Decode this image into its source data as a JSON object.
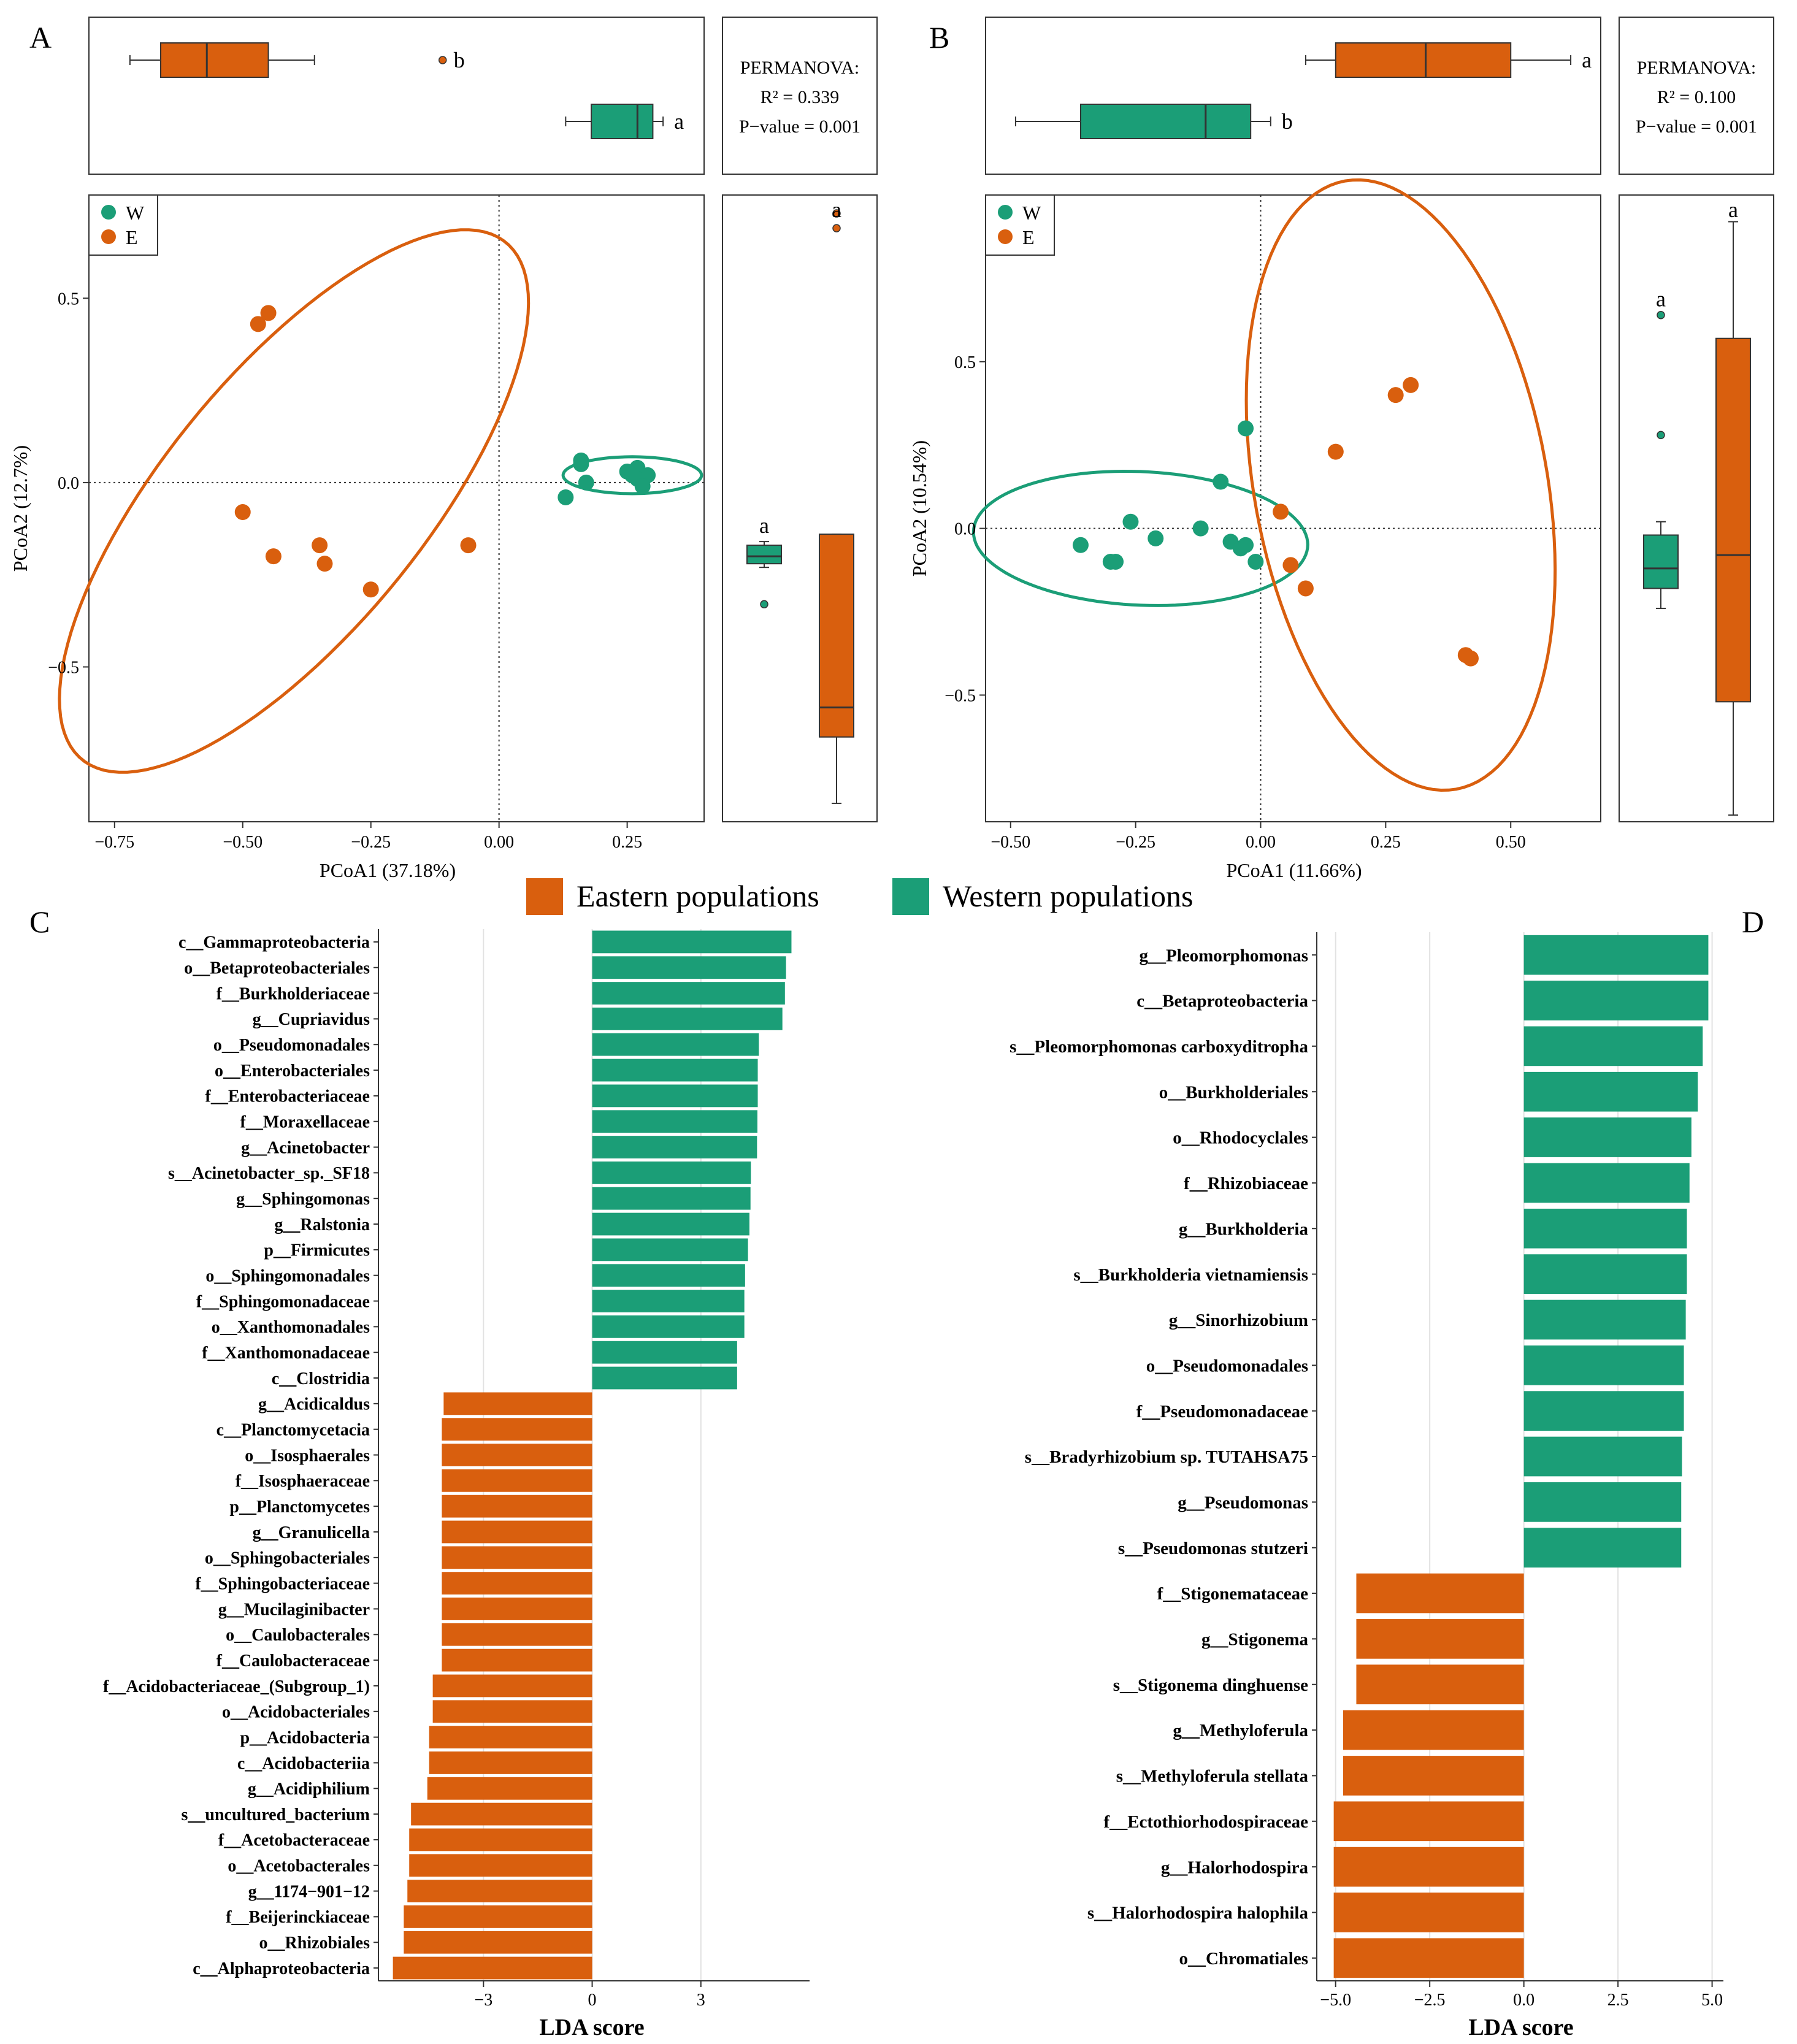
{
  "colors": {
    "east": "#d95f0e",
    "west": "#1b9e77",
    "axis": "#333333",
    "grid": "#e2e2e2"
  },
  "legend_main": {
    "east": "Eastern populations",
    "west": "Western populations"
  },
  "panel_labels": [
    "A",
    "B",
    "C",
    "D"
  ],
  "chart_data": [
    {
      "type": "scatter",
      "panel": "A",
      "xlabel": "PCoA1 (37.18%)",
      "ylabel": "PCoA2 (12.7%)",
      "xlim": [
        -0.8,
        0.4
      ],
      "ylim": [
        -0.92,
        0.78
      ],
      "xticks": [
        -0.75,
        -0.5,
        -0.25,
        0.0,
        0.25
      ],
      "xtick_labels": [
        "−0.75",
        "−0.50",
        "−0.25",
        "0.00",
        "0.25"
      ],
      "yticks": [
        0.5,
        0.0,
        -0.5
      ],
      "ytick_labels": [
        "0.5",
        "0.0",
        "−0.5"
      ],
      "legend": [
        {
          "name": "W",
          "group": "west"
        },
        {
          "name": "E",
          "group": "east"
        }
      ],
      "series": [
        {
          "name": "W",
          "group": "west",
          "points": [
            [
              0.16,
              0.05
            ],
            [
              0.16,
              0.06
            ],
            [
              0.17,
              0.0
            ],
            [
              0.13,
              -0.04
            ],
            [
              0.25,
              0.03
            ],
            [
              0.27,
              0.04
            ],
            [
              0.29,
              0.02
            ],
            [
              0.27,
              0.01
            ],
            [
              0.28,
              -0.01
            ],
            [
              0.26,
              0.02
            ]
          ]
        },
        {
          "name": "E",
          "group": "east",
          "points": [
            [
              -0.47,
              0.43
            ],
            [
              -0.45,
              0.46
            ],
            [
              -0.5,
              -0.08
            ],
            [
              -0.44,
              -0.2
            ],
            [
              -0.35,
              -0.17
            ],
            [
              -0.34,
              -0.22
            ],
            [
              -0.25,
              -0.29
            ],
            [
              -0.06,
              -0.17
            ]
          ]
        }
      ],
      "ellipses": [
        {
          "group": "west",
          "cx": 0.26,
          "cy": 0.02,
          "rx": 0.135,
          "ry": 0.05,
          "angle": 0
        },
        {
          "group": "east",
          "cx": -0.4,
          "cy": -0.05,
          "rx": 0.82,
          "ry": 0.28,
          "angle": 62
        }
      ],
      "permanova": {
        "title": "PERMANOVA:",
        "r2": "R² = 0.339",
        "p": "P−value = 0.001"
      },
      "box_top": [
        {
          "group": "east",
          "min": -0.72,
          "q1": -0.66,
          "median": -0.57,
          "q3": -0.45,
          "max": -0.36,
          "outliers": [
            -0.11
          ],
          "letter": "b"
        },
        {
          "group": "west",
          "min": 0.13,
          "q1": 0.18,
          "median": 0.27,
          "q3": 0.3,
          "max": 0.32,
          "outliers": [],
          "letter": "a"
        }
      ],
      "box_right": [
        {
          "group": "west",
          "min": -0.23,
          "q1": -0.22,
          "median": -0.2,
          "q3": -0.17,
          "max": -0.16,
          "outliers": [
            -0.33
          ],
          "letter": "a"
        },
        {
          "group": "east",
          "min": -0.87,
          "q1": -0.69,
          "median": -0.61,
          "q3": -0.14,
          "max": -0.14,
          "outliers": [
            0.73,
            0.69
          ],
          "letter": "a"
        }
      ]
    },
    {
      "type": "scatter",
      "panel": "B",
      "xlabel": "PCoA1 (11.66%)",
      "ylabel": "PCoA2 (10.54%)",
      "xlim": [
        -0.55,
        0.68
      ],
      "ylim": [
        -0.88,
        1.0
      ],
      "xticks": [
        -0.5,
        -0.25,
        0.0,
        0.25,
        0.5
      ],
      "xtick_labels": [
        "−0.50",
        "−0.25",
        "0.00",
        "0.25",
        "0.50"
      ],
      "yticks": [
        0.5,
        0.0,
        -0.5
      ],
      "ytick_labels": [
        "0.5",
        "0.0",
        "−0.5"
      ],
      "legend": [
        {
          "name": "W",
          "group": "west"
        },
        {
          "name": "E",
          "group": "east"
        }
      ],
      "series": [
        {
          "name": "W",
          "group": "west",
          "points": [
            [
              -0.36,
              -0.05
            ],
            [
              -0.3,
              -0.1
            ],
            [
              -0.29,
              -0.1
            ],
            [
              -0.26,
              0.02
            ],
            [
              -0.21,
              -0.03
            ],
            [
              -0.12,
              0.0
            ],
            [
              -0.08,
              0.14
            ],
            [
              -0.06,
              -0.04
            ],
            [
              -0.04,
              -0.06
            ],
            [
              -0.03,
              -0.05
            ],
            [
              -0.03,
              0.3
            ],
            [
              -0.01,
              -0.1
            ]
          ]
        },
        {
          "name": "E",
          "group": "east",
          "points": [
            [
              0.04,
              0.05
            ],
            [
              0.06,
              -0.11
            ],
            [
              0.09,
              -0.18
            ],
            [
              0.15,
              0.23
            ],
            [
              0.27,
              0.4
            ],
            [
              0.3,
              0.43
            ],
            [
              0.41,
              -0.38
            ],
            [
              0.42,
              -0.39
            ]
          ]
        }
      ],
      "ellipses": [
        {
          "group": "west",
          "cx": -0.24,
          "cy": -0.03,
          "rx": 0.335,
          "ry": 0.2,
          "angle": -5
        },
        {
          "group": "east",
          "cx": 0.28,
          "cy": 0.13,
          "rx": 0.92,
          "ry": 0.295,
          "angle": 96
        }
      ],
      "permanova": {
        "title": "PERMANOVA:",
        "r2": "R² = 0.100",
        "p": "P−value = 0.001"
      },
      "box_top": [
        {
          "group": "east",
          "min": 0.09,
          "q1": 0.15,
          "median": 0.33,
          "q3": 0.5,
          "max": 0.62,
          "outliers": [],
          "letter": "a"
        },
        {
          "group": "west",
          "min": -0.49,
          "q1": -0.36,
          "median": -0.11,
          "q3": -0.02,
          "max": 0.02,
          "outliers": [],
          "letter": "b"
        }
      ],
      "box_right": [
        {
          "group": "west",
          "min": -0.24,
          "q1": -0.18,
          "median": -0.12,
          "q3": -0.02,
          "max": 0.02,
          "outliers": [
            0.28,
            0.64
          ],
          "letter": "a"
        },
        {
          "group": "east",
          "min": -0.86,
          "q1": -0.52,
          "median": -0.08,
          "q3": 0.57,
          "max": 0.92,
          "outliers": [],
          "letter": "a"
        }
      ]
    },
    {
      "type": "bar",
      "orientation": "horizontal",
      "panel": "C",
      "xlabel": "LDA score",
      "xlim": [
        -5.9,
        6.0
      ],
      "xticks": [
        -3,
        0,
        3
      ],
      "xtick_labels": [
        "−3",
        "0",
        "3"
      ],
      "categories": [
        "c__Gammaproteobacteria",
        "o__Betaproteobacteriales",
        "f__Burkholderiaceae",
        "g__Cupriavidus",
        "o__Pseudomonadales",
        "o__Enterobacteriales",
        "f__Enterobacteriaceae",
        "f__Moraxellaceae",
        "g__Acinetobacter",
        "s__Acinetobacter_sp._SF18",
        "g__Sphingomonas",
        "g__Ralstonia",
        "p__Firmicutes",
        "o__Sphingomonadales",
        "f__Sphingomonadaceae",
        "o__Xanthomonadales",
        "f__Xanthomonadaceae",
        "c__Clostridia",
        "g__Acidicaldus",
        "c__Planctomycetacia",
        "o__Isosphaerales",
        "f__Isosphaeraceae",
        "p__Planctomycetes",
        "g__Granulicella",
        "o__Sphingobacteriales",
        "f__Sphingobacteriaceae",
        "g__Mucilaginibacter",
        "o__Caulobacterales",
        "f__Caulobacteraceae",
        "f__Acidobacteriaceae_(Subgroup_1)",
        "o__Acidobacteriales",
        "p__Acidobacteria",
        "c__Acidobacteriia",
        "g__Acidiphilium",
        "s__uncultured_bacterium",
        "f__Acetobacteraceae",
        "o__Acetobacterales",
        "g__1174−901−12",
        "f__Beijerinckiaceae",
        "o__Rhizobiales",
        "c__Alphaproteobacteria"
      ],
      "values": [
        5.5,
        5.35,
        5.32,
        5.25,
        4.6,
        4.57,
        4.57,
        4.56,
        4.55,
        4.38,
        4.37,
        4.34,
        4.3,
        4.22,
        4.2,
        4.2,
        4.0,
        4.0,
        -4.1,
        -4.15,
        -4.15,
        -4.15,
        -4.15,
        -4.15,
        -4.15,
        -4.15,
        -4.15,
        -4.15,
        -4.15,
        -4.4,
        -4.4,
        -4.5,
        -4.5,
        -4.55,
        -5.0,
        -5.05,
        -5.05,
        -5.1,
        -5.2,
        -5.2,
        -5.5
      ],
      "groups": [
        "west",
        "west",
        "west",
        "west",
        "west",
        "west",
        "west",
        "west",
        "west",
        "west",
        "west",
        "west",
        "west",
        "west",
        "west",
        "west",
        "west",
        "west",
        "east",
        "east",
        "east",
        "east",
        "east",
        "east",
        "east",
        "east",
        "east",
        "east",
        "east",
        "east",
        "east",
        "east",
        "east",
        "east",
        "east",
        "east",
        "east",
        "east",
        "east",
        "east",
        "east"
      ]
    },
    {
      "type": "bar",
      "orientation": "horizontal",
      "panel": "D",
      "xlabel": "LDA score",
      "xlim": [
        -5.5,
        5.3
      ],
      "xticks": [
        -5.0,
        -2.5,
        0.0,
        2.5,
        5.0
      ],
      "xtick_labels": [
        "−5.0",
        "−2.5",
        "0.0",
        "2.5",
        "5.0"
      ],
      "categories": [
        "g__Pleomorphomonas",
        "c__Betaproteobacteria",
        "s__Pleomorphomonas carboxyditropha",
        "o__Burkholderiales",
        "o__Rhodocyclales",
        "f__Rhizobiaceae",
        "g__Burkholderia",
        "s__Burkholderia vietnamiensis",
        "g__Sinorhizobium",
        "o__Pseudomonadales",
        "f__Pseudomonadaceae",
        "s__Bradyrhizobium sp. TUTAHSA75",
        "g__Pseudomonas",
        "s__Pseudomonas stutzeri",
        "f__Stigonemataceae",
        "g__Stigonema",
        "s__Stigonema dinghuense",
        "g__Methyloferula",
        "s__Methyloferula stellata",
        "f__Ectothiorhodospiraceae",
        "g__Halorhodospira",
        "s__Halorhodospira halophila",
        "o__Chromatiales"
      ],
      "values": [
        4.9,
        4.9,
        4.75,
        4.62,
        4.45,
        4.4,
        4.33,
        4.33,
        4.3,
        4.25,
        4.25,
        4.2,
        4.18,
        4.18,
        -4.45,
        -4.45,
        -4.45,
        -4.8,
        -4.8,
        -5.05,
        -5.05,
        -5.05,
        -5.05
      ],
      "groups": [
        "west",
        "west",
        "west",
        "west",
        "west",
        "west",
        "west",
        "west",
        "west",
        "west",
        "west",
        "west",
        "west",
        "west",
        "east",
        "east",
        "east",
        "east",
        "east",
        "east",
        "east",
        "east",
        "east"
      ]
    }
  ]
}
